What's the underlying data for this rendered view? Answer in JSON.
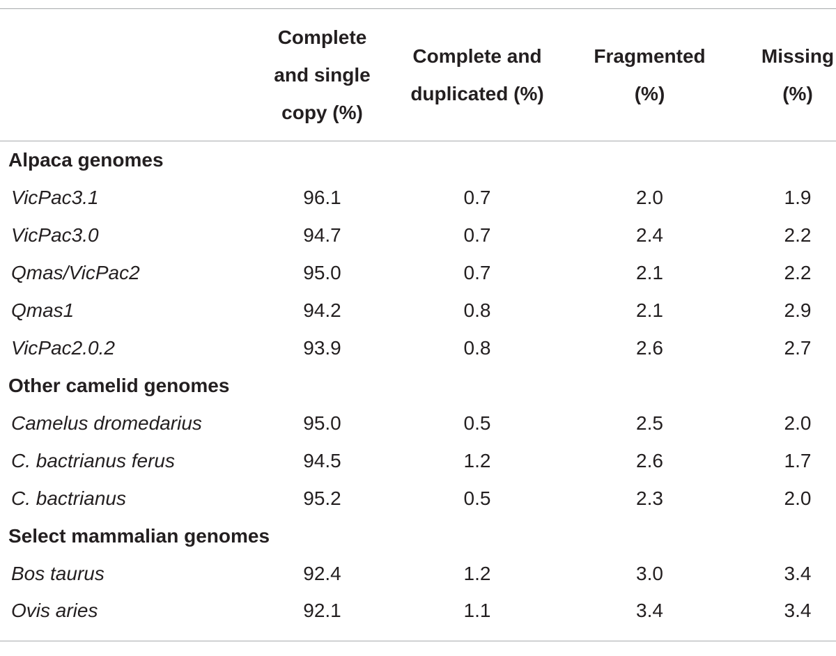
{
  "table": {
    "columns": [
      {
        "lines": []
      },
      {
        "lines": [
          "Complete",
          "and single",
          "copy (%)"
        ]
      },
      {
        "lines": [
          "Complete and",
          "duplicated (%)"
        ]
      },
      {
        "lines": [
          "Fragmented",
          "(%)"
        ]
      },
      {
        "lines": [
          "Missing",
          "(%)"
        ]
      }
    ],
    "groups": [
      {
        "name": "Alpaca genomes",
        "rows": [
          {
            "genome": "VicPac3.1",
            "values": [
              "96.1",
              "0.7",
              "2.0",
              "1.9"
            ]
          },
          {
            "genome": "VicPac3.0",
            "values": [
              "94.7",
              "0.7",
              "2.4",
              "2.2"
            ]
          },
          {
            "genome": "Qmas/VicPac2",
            "values": [
              "95.0",
              "0.7",
              "2.1",
              "2.2"
            ]
          },
          {
            "genome": "Qmas1",
            "values": [
              "94.2",
              "0.8",
              "2.1",
              "2.9"
            ]
          },
          {
            "genome": "VicPac2.0.2",
            "values": [
              "93.9",
              "0.8",
              "2.6",
              "2.7"
            ]
          }
        ]
      },
      {
        "name": "Other camelid genomes",
        "rows": [
          {
            "genome": "Camelus dromedarius",
            "values": [
              "95.0",
              "0.5",
              "2.5",
              "2.0"
            ]
          },
          {
            "genome": "C. bactrianus ferus",
            "values": [
              "94.5",
              "1.2",
              "2.6",
              "1.7"
            ]
          },
          {
            "genome": "C. bactrianus",
            "values": [
              "95.2",
              "0.5",
              "2.3",
              "2.0"
            ]
          }
        ]
      },
      {
        "name": "Select mammalian genomes",
        "rows": [
          {
            "genome": "Bos taurus",
            "values": [
              "92.4",
              "1.2",
              "3.0",
              "3.4"
            ]
          },
          {
            "genome": "Ovis aries",
            "values": [
              "92.1",
              "1.1",
              "3.4",
              "3.4"
            ]
          }
        ]
      }
    ]
  }
}
